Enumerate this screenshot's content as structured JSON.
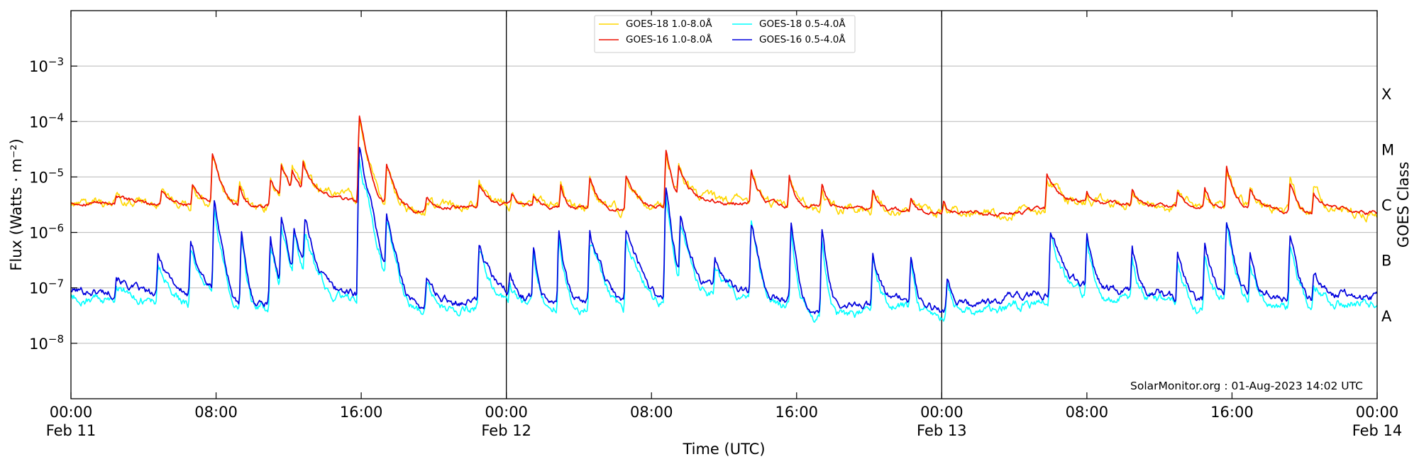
{
  "chart_data": {
    "type": "line",
    "title": "",
    "xlabel": "Time (UTC)",
    "ylabel": "Flux (Watts · m⁻²)",
    "right_label": "GOES Class",
    "y_scale": "log",
    "ylim": [
      1e-09,
      0.01
    ],
    "xlim_hours": [
      0,
      72
    ],
    "grid": "horizontal",
    "x_ticks": [
      {
        "hour": 0,
        "time": "00:00",
        "date": "Feb 11"
      },
      {
        "hour": 8,
        "time": "08:00",
        "date": ""
      },
      {
        "hour": 16,
        "time": "16:00",
        "date": ""
      },
      {
        "hour": 24,
        "time": "00:00",
        "date": "Feb 12"
      },
      {
        "hour": 32,
        "time": "08:00",
        "date": ""
      },
      {
        "hour": 40,
        "time": "16:00",
        "date": ""
      },
      {
        "hour": 48,
        "time": "00:00",
        "date": "Feb 13"
      },
      {
        "hour": 56,
        "time": "08:00",
        "date": ""
      },
      {
        "hour": 64,
        "time": "16:00",
        "date": ""
      },
      {
        "hour": 72,
        "time": "00:00",
        "date": "Feb 14"
      }
    ],
    "day_dividers_hours": [
      24,
      48
    ],
    "y_ticks": [
      {
        "value": 0.001,
        "base": "10",
        "exp": "−3"
      },
      {
        "value": 0.0001,
        "base": "10",
        "exp": "−4"
      },
      {
        "value": 1e-05,
        "base": "10",
        "exp": "−5"
      },
      {
        "value": 1e-06,
        "base": "10",
        "exp": "−6"
      },
      {
        "value": 1e-07,
        "base": "10",
        "exp": "−7"
      },
      {
        "value": 1e-08,
        "base": "10",
        "exp": "−8"
      }
    ],
    "goes_classes": [
      {
        "label": "X",
        "value": 0.000316
      },
      {
        "label": "M",
        "value": 3.16e-05
      },
      {
        "label": "C",
        "value": 3.16e-06
      },
      {
        "label": "B",
        "value": 3.16e-07
      },
      {
        "label": "A",
        "value": 3.16e-08
      }
    ],
    "legend": {
      "position": "top-center",
      "items": [
        {
          "label": "GOES-18 1.0-8.0Å",
          "color": "#ffd700"
        },
        {
          "label": "GOES-16 1.0-8.0Å",
          "color": "#ee1100"
        },
        {
          "label": "GOES-18 0.5-4.0Å",
          "color": "#00ffff"
        },
        {
          "label": "GOES-16 0.5-4.0Å",
          "color": "#0000dd"
        }
      ]
    },
    "annotation": "SolarMonitor.org : 01-Aug-2023 14:02 UTC",
    "series": [
      {
        "name": "GOES-16 1.0-8.0Å",
        "color": "#ee1100",
        "baseline": [
          [
            0,
            3.5e-06
          ],
          [
            4,
            3.3e-06
          ],
          [
            10,
            2.6e-06
          ],
          [
            14,
            4.5e-06
          ],
          [
            18,
            3e-06
          ],
          [
            19,
            2.4e-06
          ],
          [
            22,
            3e-06
          ],
          [
            24,
            3.3e-06
          ],
          [
            28,
            2.6e-06
          ],
          [
            32,
            2.4e-06
          ],
          [
            34,
            4e-06
          ],
          [
            36,
            3.5e-06
          ],
          [
            40,
            3e-06
          ],
          [
            44,
            2.6e-06
          ],
          [
            48,
            2.2e-06
          ],
          [
            52,
            2.2e-06
          ],
          [
            56,
            3.5e-06
          ],
          [
            58,
            3.2e-06
          ],
          [
            62,
            2.8e-06
          ],
          [
            66,
            2.8e-06
          ],
          [
            68,
            2e-06
          ],
          [
            70,
            2.4e-06
          ],
          [
            72,
            2.2e-06
          ]
        ],
        "flares": [
          [
            2.5,
            1.2e-06,
            1.2
          ],
          [
            5.0,
            2.5e-06,
            1.0
          ],
          [
            6.7,
            4e-06,
            0.8
          ],
          [
            7.8,
            2e-05,
            0.6
          ],
          [
            9.3,
            4e-06,
            0.5
          ],
          [
            11.0,
            6e-06,
            0.6
          ],
          [
            11.6,
            1.1e-05,
            0.7
          ],
          [
            12.2,
            8e-06,
            0.6
          ],
          [
            12.8,
            1.3e-05,
            0.7
          ],
          [
            15.9,
            0.00012,
            0.45
          ],
          [
            17.4,
            1.3e-05,
            0.6
          ],
          [
            19.6,
            1.8e-06,
            0.8
          ],
          [
            22.5,
            4e-06,
            0.8
          ],
          [
            24.3,
            1.5e-06,
            0.5
          ],
          [
            25.5,
            1.5e-06,
            0.5
          ],
          [
            27.0,
            5e-06,
            0.4
          ],
          [
            28.6,
            7e-06,
            0.6
          ],
          [
            30.6,
            7e-06,
            1.0
          ],
          [
            32.8,
            3e-05,
            0.4
          ],
          [
            33.5,
            1.2e-05,
            0.7
          ],
          [
            37.5,
            1e-05,
            0.5
          ],
          [
            39.6,
            8e-06,
            0.4
          ],
          [
            41.4,
            4.5e-06,
            0.4
          ],
          [
            44.2,
            3e-06,
            0.6
          ],
          [
            46.3,
            1.5e-06,
            0.4
          ],
          [
            48.1,
            1.2e-06,
            0.4
          ],
          [
            53.8,
            8e-06,
            1.0
          ],
          [
            56.0,
            2e-06,
            0.5
          ],
          [
            58.5,
            2.5e-06,
            0.5
          ],
          [
            61.0,
            2.5e-06,
            0.5
          ],
          [
            62.5,
            3e-06,
            0.5
          ],
          [
            63.7,
            1.3e-05,
            0.5
          ],
          [
            65.0,
            3e-06,
            0.5
          ],
          [
            67.2,
            5e-06,
            0.6
          ],
          [
            68.5,
            3e-06,
            1.2
          ]
        ]
      },
      {
        "name": "GOES-16 0.5-4.0Å",
        "color": "#0000dd",
        "baseline": [
          [
            0,
            9e-08
          ],
          [
            4,
            8e-08
          ],
          [
            6,
            5e-08
          ],
          [
            8,
            6e-08
          ],
          [
            9,
            4e-08
          ],
          [
            10,
            5e-08
          ],
          [
            14,
            1e-07
          ],
          [
            18,
            6e-08
          ],
          [
            19,
            4.5e-08
          ],
          [
            22,
            6e-08
          ],
          [
            24,
            7e-08
          ],
          [
            28,
            6e-08
          ],
          [
            32,
            4e-08
          ],
          [
            34,
            1e-07
          ],
          [
            36,
            1e-07
          ],
          [
            38,
            7e-08
          ],
          [
            40,
            6e-08
          ],
          [
            41,
            4e-08
          ],
          [
            44,
            5e-08
          ],
          [
            46,
            6e-08
          ],
          [
            48,
            4e-08
          ],
          [
            50,
            5e-08
          ],
          [
            52,
            7e-08
          ],
          [
            56,
            1e-07
          ],
          [
            60,
            8e-08
          ],
          [
            62,
            5e-08
          ],
          [
            64,
            8e-08
          ],
          [
            66,
            8e-08
          ],
          [
            68,
            5e-08
          ],
          [
            70,
            7e-08
          ],
          [
            72,
            7e-08
          ]
        ],
        "flares": [
          [
            2.5,
            1e-07,
            1.0
          ],
          [
            4.8,
            2.8e-07,
            1.2
          ],
          [
            6.6,
            5e-07,
            0.8
          ],
          [
            7.9,
            3.5e-06,
            0.4
          ],
          [
            9.4,
            8e-07,
            0.3
          ],
          [
            11.0,
            8e-07,
            0.4
          ],
          [
            11.6,
            1.6e-06,
            0.5
          ],
          [
            12.3,
            1e-06,
            0.6
          ],
          [
            12.9,
            1.4e-06,
            0.6
          ],
          [
            15.9,
            3.2e-05,
            0.5
          ],
          [
            17.4,
            1.8e-06,
            0.5
          ],
          [
            19.6,
            1e-07,
            0.8
          ],
          [
            22.5,
            5e-07,
            0.8
          ],
          [
            24.2,
            1e-07,
            0.4
          ],
          [
            25.5,
            5e-07,
            0.3
          ],
          [
            26.9,
            1.2e-06,
            0.3
          ],
          [
            28.6,
            9e-07,
            0.7
          ],
          [
            30.6,
            1e-06,
            0.9
          ],
          [
            32.8,
            6.5e-06,
            0.3
          ],
          [
            33.6,
            1.5e-06,
            0.6
          ],
          [
            35.5,
            2e-07,
            0.8
          ],
          [
            37.5,
            1.6e-06,
            0.4
          ],
          [
            39.7,
            1.4e-06,
            0.3
          ],
          [
            41.4,
            9e-07,
            0.3
          ],
          [
            44.2,
            4e-07,
            0.5
          ],
          [
            46.3,
            3e-07,
            0.3
          ],
          [
            48.3,
            1e-07,
            0.5
          ],
          [
            54.0,
            1.1e-06,
            0.8
          ],
          [
            56.0,
            9e-07,
            0.4
          ],
          [
            58.5,
            4e-07,
            0.4
          ],
          [
            61.0,
            4e-07,
            0.5
          ],
          [
            62.5,
            5e-07,
            0.5
          ],
          [
            63.7,
            1.9e-06,
            0.4
          ],
          [
            65.0,
            4e-07,
            0.4
          ],
          [
            67.2,
            7e-07,
            0.5
          ],
          [
            68.5,
            1.3e-07,
            1.0
          ]
        ]
      },
      {
        "name": "GOES-18 0.5-4.0Å",
        "color": "#00ffff",
        "follows": "GOES-16 0.5-4.0Å",
        "factor": 0.72
      },
      {
        "name": "GOES-18 1.0-8.0Å",
        "color": "#ffd700",
        "follows": "GOES-16 1.0-8.0Å",
        "factor": 1.0,
        "hidden_under": true
      }
    ]
  }
}
